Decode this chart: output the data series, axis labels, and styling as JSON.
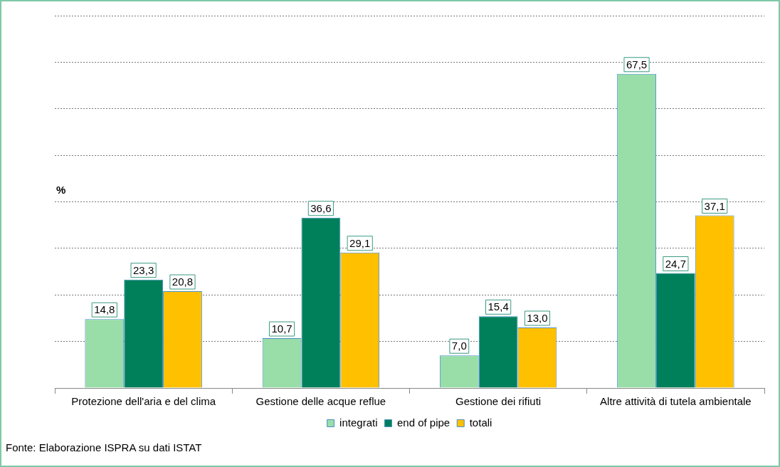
{
  "chart_data": {
    "type": "bar",
    "ylabel": "%",
    "categories": [
      "Protezione dell'aria e del clima",
      "Gestione delle acque reflue",
      "Gestione dei rifiuti",
      "Altre attività di tutela ambientale"
    ],
    "series": [
      {
        "name": "integrati",
        "color": "#99dda8",
        "values": [
          14.8,
          10.7,
          7.0,
          67.5
        ],
        "value_labels": [
          "14,8",
          "10,7",
          "7,0",
          "67,5"
        ]
      },
      {
        "name": "end of pipe",
        "color": "#00805a",
        "values": [
          23.3,
          36.6,
          15.4,
          24.7
        ],
        "value_labels": [
          "23,3",
          "36,6",
          "15,4",
          "24,7"
        ]
      },
      {
        "name": "totali",
        "color": "#ffc000",
        "values": [
          20.8,
          29.1,
          13.0,
          37.1
        ],
        "value_labels": [
          "20,8",
          "29,1",
          "13,0",
          "37,1"
        ]
      }
    ],
    "tick_labels": "x",
    "grid": "y",
    "legend": "bottom",
    "annotations": [
      "Fonte: Elaborazione ISPRA su dati ISTAT"
    ]
  }
}
